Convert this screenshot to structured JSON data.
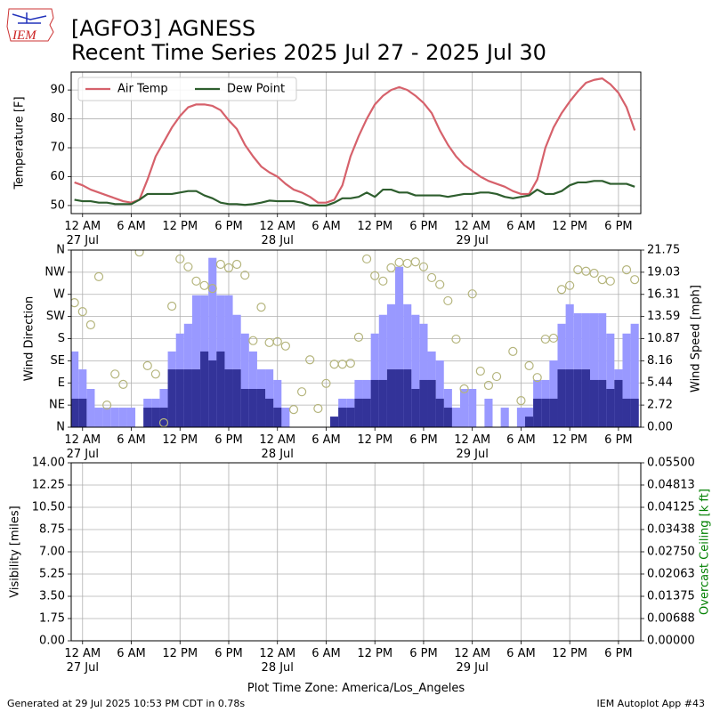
{
  "title": "[AGFO3] AGNESS",
  "subtitle": "Recent Time Series 2025 Jul 27 - 2025 Jul 30",
  "logo_text": "IEM",
  "footer_left": "Generated at 29 Jul 2025 10:53 PM CDT in 0.78s",
  "footer_right": "IEM Autoplot App #43",
  "chart_data": [
    {
      "type": "line",
      "ylabel": "Temperature [F]",
      "legend": "upper left",
      "grid": true,
      "xlim": [
        "2025-07-26T22:36",
        "2025-07-29T20:45"
      ],
      "xticks": [
        {
          "value": "2025-07-27T00:00",
          "label": "12 AM\n27 Jul"
        },
        {
          "value": "2025-07-27T06:00",
          "label": "6 AM"
        },
        {
          "value": "2025-07-27T12:00",
          "label": "12 PM"
        },
        {
          "value": "2025-07-27T18:00",
          "label": "6 PM"
        },
        {
          "value": "2025-07-28T00:00",
          "label": "12 AM\n28 Jul"
        },
        {
          "value": "2025-07-28T06:00",
          "label": "6 AM"
        },
        {
          "value": "2025-07-28T12:00",
          "label": "12 PM"
        },
        {
          "value": "2025-07-28T18:00",
          "label": "6 PM"
        },
        {
          "value": "2025-07-29T00:00",
          "label": "12 AM\n29 Jul"
        },
        {
          "value": "2025-07-29T06:00",
          "label": "6 AM"
        },
        {
          "value": "2025-07-29T12:00",
          "label": "12 PM"
        },
        {
          "value": "2025-07-29T18:00",
          "label": "6 PM"
        }
      ],
      "ylim": [
        47.2,
        96.2
      ],
      "yticks": [
        50,
        60,
        70,
        80,
        90
      ],
      "x": [
        "2025-07-26T23:00",
        "2025-07-27T00:00",
        "2025-07-27T01:00",
        "2025-07-27T02:00",
        "2025-07-27T03:00",
        "2025-07-27T04:00",
        "2025-07-27T05:00",
        "2025-07-27T06:00",
        "2025-07-27T07:00",
        "2025-07-27T08:00",
        "2025-07-27T09:00",
        "2025-07-27T10:00",
        "2025-07-27T11:00",
        "2025-07-27T12:00",
        "2025-07-27T13:00",
        "2025-07-27T14:00",
        "2025-07-27T15:00",
        "2025-07-27T16:00",
        "2025-07-27T17:00",
        "2025-07-27T18:00",
        "2025-07-27T19:00",
        "2025-07-27T20:00",
        "2025-07-27T21:00",
        "2025-07-27T22:00",
        "2025-07-27T23:00",
        "2025-07-28T00:00",
        "2025-07-28T01:00",
        "2025-07-28T02:00",
        "2025-07-28T03:00",
        "2025-07-28T04:00",
        "2025-07-28T05:00",
        "2025-07-28T06:00",
        "2025-07-28T07:00",
        "2025-07-28T08:00",
        "2025-07-28T09:00",
        "2025-07-28T10:00",
        "2025-07-28T11:00",
        "2025-07-28T12:00",
        "2025-07-28T13:00",
        "2025-07-28T14:00",
        "2025-07-28T15:00",
        "2025-07-28T16:00",
        "2025-07-28T17:00",
        "2025-07-28T18:00",
        "2025-07-28T19:00",
        "2025-07-28T20:00",
        "2025-07-28T21:00",
        "2025-07-28T22:00",
        "2025-07-28T23:00",
        "2025-07-29T00:00",
        "2025-07-29T01:00",
        "2025-07-29T02:00",
        "2025-07-29T03:00",
        "2025-07-29T04:00",
        "2025-07-29T05:00",
        "2025-07-29T06:00",
        "2025-07-29T07:00",
        "2025-07-29T08:00",
        "2025-07-29T09:00",
        "2025-07-29T10:00",
        "2025-07-29T11:00",
        "2025-07-29T12:00",
        "2025-07-29T13:00",
        "2025-07-29T14:00",
        "2025-07-29T15:00",
        "2025-07-29T16:00",
        "2025-07-29T17:00",
        "2025-07-29T18:00",
        "2025-07-29T19:00",
        "2025-07-29T20:00"
      ],
      "series": [
        {
          "name": "Air Temp",
          "color": "#d6616b",
          "values": [
            58,
            57,
            55.5,
            54.5,
            53.5,
            52.5,
            51.5,
            51,
            52,
            59,
            67,
            72,
            77,
            81,
            84,
            85,
            85,
            84.5,
            83,
            79.5,
            76.5,
            71,
            67,
            63.5,
            61.5,
            60,
            57.5,
            55.5,
            54.5,
            53,
            51,
            51,
            52,
            57,
            67,
            74,
            80,
            85,
            88,
            90,
            91,
            90,
            88,
            85.5,
            82,
            76,
            71,
            67,
            64,
            62,
            60,
            58.5,
            57.5,
            56.5,
            55,
            54,
            54,
            59,
            70,
            77,
            82,
            86,
            89.5,
            92.5,
            93.5,
            94,
            92,
            89,
            84,
            76
          ]
        },
        {
          "name": "Dew Point",
          "color": "#2e5e2e",
          "values": [
            52,
            51.5,
            51.5,
            51,
            51,
            50.5,
            50.5,
            50.5,
            52,
            54,
            54,
            54,
            54,
            54.5,
            55,
            55,
            53.5,
            52.5,
            51,
            50.5,
            50.5,
            50.2,
            50.5,
            51,
            51.7,
            51.5,
            51.5,
            51.5,
            51,
            50,
            50,
            50,
            51,
            52.5,
            52.5,
            53,
            54.5,
            53,
            55.5,
            55.5,
            54.5,
            54.5,
            53.5,
            53.5,
            53.5,
            53.5,
            53,
            53.5,
            54,
            54,
            54.5,
            54.5,
            54,
            53,
            52.5,
            53,
            53.5,
            55.5,
            54,
            54,
            55,
            57,
            58,
            58,
            58.5,
            58.5,
            57.5,
            57.5,
            57.5,
            56.5
          ]
        }
      ]
    },
    {
      "type": "combo",
      "ylabel": "Wind Direction",
      "y2label": "Wind Speed [mph]",
      "grid": true,
      "xlim": [
        "2025-07-26T22:36",
        "2025-07-29T20:45"
      ],
      "xticks": [
        {
          "value": "2025-07-27T00:00",
          "label": "12 AM\n27 Jul"
        },
        {
          "value": "2025-07-27T06:00",
          "label": "6 AM"
        },
        {
          "value": "2025-07-27T12:00",
          "label": "12 PM"
        },
        {
          "value": "2025-07-27T18:00",
          "label": "6 PM"
        },
        {
          "value": "2025-07-28T00:00",
          "label": "12 AM\n28 Jul"
        },
        {
          "value": "2025-07-28T06:00",
          "label": "6 AM"
        },
        {
          "value": "2025-07-28T12:00",
          "label": "12 PM"
        },
        {
          "value": "2025-07-28T18:00",
          "label": "6 PM"
        },
        {
          "value": "2025-07-29T00:00",
          "label": "12 AM\n29 Jul"
        },
        {
          "value": "2025-07-29T06:00",
          "label": "6 AM"
        },
        {
          "value": "2025-07-29T12:00",
          "label": "12 PM"
        },
        {
          "value": "2025-07-29T18:00",
          "label": "6 PM"
        }
      ],
      "ylim": [
        0,
        360
      ],
      "yticks": [
        {
          "value": 0,
          "label": "N"
        },
        {
          "value": 45,
          "label": "NE"
        },
        {
          "value": 90,
          "label": "E"
        },
        {
          "value": 135,
          "label": "SE"
        },
        {
          "value": 180,
          "label": "S"
        },
        {
          "value": 225,
          "label": "SW"
        },
        {
          "value": 270,
          "label": "W"
        },
        {
          "value": 315,
          "label": "NW"
        },
        {
          "value": 360,
          "label": "N"
        }
      ],
      "y2lim": [
        0,
        21.75
      ],
      "y2ticks": [
        {
          "value": 0,
          "label": "0.00"
        },
        2.72,
        5.44,
        8.16,
        10.87,
        13.59,
        16.31,
        19.03,
        21.75
      ],
      "x": [
        "2025-07-26T23:00",
        "2025-07-27T00:00",
        "2025-07-27T01:00",
        "2025-07-27T02:00",
        "2025-07-27T03:00",
        "2025-07-27T04:00",
        "2025-07-27T05:00",
        "2025-07-27T06:00",
        "2025-07-27T07:00",
        "2025-07-27T08:00",
        "2025-07-27T09:00",
        "2025-07-27T10:00",
        "2025-07-27T11:00",
        "2025-07-27T12:00",
        "2025-07-27T13:00",
        "2025-07-27T14:00",
        "2025-07-27T15:00",
        "2025-07-27T16:00",
        "2025-07-27T17:00",
        "2025-07-27T18:00",
        "2025-07-27T19:00",
        "2025-07-27T20:00",
        "2025-07-27T21:00",
        "2025-07-27T22:00",
        "2025-07-27T23:00",
        "2025-07-28T00:00",
        "2025-07-28T01:00",
        "2025-07-28T02:00",
        "2025-07-28T03:00",
        "2025-07-28T04:00",
        "2025-07-28T05:00",
        "2025-07-28T06:00",
        "2025-07-28T07:00",
        "2025-07-28T08:00",
        "2025-07-28T09:00",
        "2025-07-28T10:00",
        "2025-07-28T11:00",
        "2025-07-28T12:00",
        "2025-07-28T13:00",
        "2025-07-28T14:00",
        "2025-07-28T15:00",
        "2025-07-28T16:00",
        "2025-07-28T17:00",
        "2025-07-28T18:00",
        "2025-07-28T19:00",
        "2025-07-28T20:00",
        "2025-07-28T21:00",
        "2025-07-28T22:00",
        "2025-07-28T23:00",
        "2025-07-29T00:00",
        "2025-07-29T01:00",
        "2025-07-29T02:00",
        "2025-07-29T03:00",
        "2025-07-29T04:00",
        "2025-07-29T05:00",
        "2025-07-29T06:00",
        "2025-07-29T07:00",
        "2025-07-29T08:00",
        "2025-07-29T09:00",
        "2025-07-29T10:00",
        "2025-07-29T11:00",
        "2025-07-29T12:00",
        "2025-07-29T13:00",
        "2025-07-29T14:00",
        "2025-07-29T15:00",
        "2025-07-29T16:00",
        "2025-07-29T17:00",
        "2025-07-29T18:00",
        "2025-07-29T19:00",
        "2025-07-29T20:00"
      ],
      "series": [
        {
          "type": "bar",
          "axis": "y2",
          "color": "#9999ff",
          "values": [
            9.3,
            7.1,
            4.7,
            2.4,
            2.4,
            2.4,
            2.4,
            2.4,
            0,
            3.5,
            3.5,
            4.7,
            9.3,
            11.5,
            12.7,
            16.2,
            16.2,
            20.8,
            16.2,
            16.2,
            13.8,
            11.5,
            9.3,
            7.1,
            7.1,
            5.8,
            2.4,
            0,
            0,
            0,
            0,
            0,
            1.3,
            3.5,
            3.5,
            5.8,
            5.8,
            11.5,
            13.8,
            15.1,
            19.7,
            15.1,
            13.8,
            12.7,
            9.3,
            8.2,
            4.7,
            2.4,
            4.7,
            4.7,
            0,
            3.5,
            0,
            2.4,
            0,
            2.4,
            2.4,
            5.8,
            5.8,
            8.2,
            12.7,
            15.1,
            14,
            14,
            14,
            14,
            11.5,
            7.1,
            11.5,
            12.7
          ]
        },
        {
          "type": "bar",
          "axis": "y2",
          "color": "#333399",
          "values": [
            3.5,
            3.5,
            0,
            0,
            0,
            0,
            0,
            0,
            0,
            2.4,
            2.4,
            2.4,
            7.1,
            7.1,
            7.1,
            7.1,
            9.3,
            8.2,
            9.3,
            7.1,
            7.1,
            4.7,
            4.7,
            4.7,
            3.5,
            2.4,
            0,
            0,
            0,
            0,
            0,
            0,
            1.3,
            2.4,
            2.4,
            3.5,
            3.5,
            5.8,
            5.8,
            7.1,
            7.1,
            7.1,
            4.7,
            5.8,
            5.8,
            3.5,
            2.4,
            0,
            0,
            0,
            0,
            0,
            0,
            0,
            0,
            0,
            1.3,
            3.5,
            3.5,
            3.5,
            7.1,
            7.1,
            7.1,
            7.1,
            5.8,
            5.8,
            4.7,
            5.8,
            3.5,
            3.5
          ]
        },
        {
          "type": "scatter",
          "color": "#b5b57d",
          "values": [
            253,
            235,
            208,
            306,
            45,
            108,
            87,
            null,
            356,
            125,
            108,
            9,
            246,
            342,
            326,
            297,
            288,
            282,
            331,
            324,
            331,
            309,
            176,
            244,
            172,
            174,
            165,
            36,
            72,
            137,
            38,
            89,
            128,
            128,
            130,
            183,
            342,
            308,
            297,
            324,
            335,
            333,
            336,
            326,
            304,
            290,
            257,
            179,
            78,
            271,
            114,
            85,
            103,
            null,
            154,
            54,
            125,
            101,
            179,
            181,
            280,
            288,
            320,
            317,
            313,
            300,
            297,
            null,
            320,
            300
          ]
        }
      ]
    },
    {
      "type": "line",
      "ylabel": "Visibility [miles]",
      "y2label": "Overcast Ceiling [k ft]",
      "y2label_color": "#008000",
      "xlabel": "Plot Time Zone: America/Los_Angeles",
      "grid": true,
      "xlim": [
        "2025-07-26T22:36",
        "2025-07-29T20:45"
      ],
      "xticks": [
        {
          "value": "2025-07-27T00:00",
          "label": "12 AM\n27 Jul"
        },
        {
          "value": "2025-07-27T06:00",
          "label": "6 AM"
        },
        {
          "value": "2025-07-27T12:00",
          "label": "12 PM"
        },
        {
          "value": "2025-07-27T18:00",
          "label": "6 PM"
        },
        {
          "value": "2025-07-28T00:00",
          "label": "12 AM\n28 Jul"
        },
        {
          "value": "2025-07-28T06:00",
          "label": "6 AM"
        },
        {
          "value": "2025-07-28T12:00",
          "label": "12 PM"
        },
        {
          "value": "2025-07-28T18:00",
          "label": "6 PM"
        },
        {
          "value": "2025-07-29T00:00",
          "label": "12 AM\n29 Jul"
        },
        {
          "value": "2025-07-29T06:00",
          "label": "6 AM"
        },
        {
          "value": "2025-07-29T12:00",
          "label": "12 PM"
        },
        {
          "value": "2025-07-29T18:00",
          "label": "6 PM"
        }
      ],
      "ylim": [
        0,
        14
      ],
      "yticks": [
        {
          "value": 0,
          "label": "0.00"
        },
        1.75,
        {
          "value": 3.5,
          "label": "3.50"
        },
        5.25,
        {
          "value": 7,
          "label": "7.00"
        },
        8.75,
        {
          "value": 10.5,
          "label": "10.50"
        },
        12.25,
        {
          "value": 14,
          "label": "14.00"
        }
      ],
      "y2lim": [
        0,
        0.055
      ],
      "y2ticks": [
        {
          "value": 0,
          "label": "0.00000"
        },
        0.00688,
        0.01375,
        0.02063,
        {
          "value": 0.0275,
          "label": "0.02750"
        },
        0.03438,
        0.04125,
        0.04813,
        {
          "value": 0.055,
          "label": "0.05500"
        }
      ],
      "series": []
    }
  ]
}
